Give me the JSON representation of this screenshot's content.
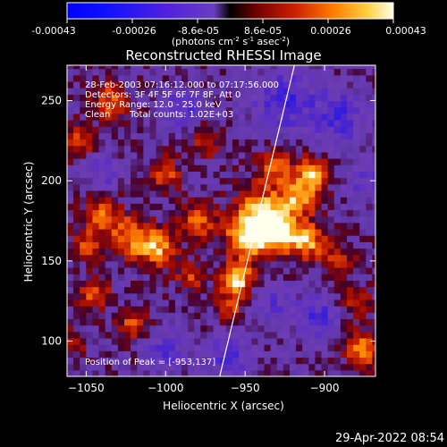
{
  "colorbar": {
    "tick_labels": [
      "-0.00043",
      "-0.00026",
      "-8.6e-05",
      "8.6e-05",
      "0.00026",
      "0.00043"
    ],
    "units_prefix": "(photons cm",
    "units_exp1": "-2",
    "units_mid": " s",
    "units_exp2": "-1",
    "units_mid2": " asec",
    "units_exp3": "-2",
    "units_suffix": ")",
    "range": [
      -0.00043,
      0.00043
    ]
  },
  "annotations": {
    "time": "28-Feb-2003 07:16:12.000 to 07:17:56.000",
    "detectors": "Detectors: 3F 4F 5F 6F 7F 8F, Att 0",
    "energy": "Energy Range: 12.0 - 25.0 keV",
    "clean_label": "Clean",
    "total_counts": "Total counts: 1.02E+03",
    "peak": "Position of Peak = [-953,137]"
  },
  "footer": {
    "date": "29-Apr-2022 08:54"
  },
  "chart_data": {
    "type": "heatmap",
    "title": "Reconstructed RHESSI Image",
    "xlabel": "Heliocentric X (arcsec)",
    "ylabel": "Heliocentric Y (arcsec)",
    "xlim": [
      -1062,
      -868
    ],
    "ylim": [
      78,
      272
    ],
    "x_ticks": [
      -1050,
      -1000,
      -950,
      -900
    ],
    "x_tick_labels": [
      "−1050",
      "−1000",
      "−950",
      "−900"
    ],
    "y_ticks": [
      100,
      150,
      200,
      250
    ],
    "y_tick_labels": [
      "100",
      "150",
      "200",
      "250"
    ],
    "peak_position": [
      -953,
      137
    ],
    "limb_line": [
      [
        -966,
        78
      ],
      [
        -919,
        272
      ]
    ],
    "grid": false,
    "sources": [
      {
        "x": -955,
        "y": 138,
        "intensity": 1.0,
        "radius": 7
      },
      {
        "x": -948,
        "y": 165,
        "intensity": 0.85,
        "radius": 10
      },
      {
        "x": -938,
        "y": 180,
        "intensity": 0.8,
        "radius": 12
      },
      {
        "x": -928,
        "y": 168,
        "intensity": 0.75,
        "radius": 9
      },
      {
        "x": -910,
        "y": 162,
        "intensity": 0.7,
        "radius": 8
      },
      {
        "x": -915,
        "y": 190,
        "intensity": 0.65,
        "radius": 8
      },
      {
        "x": -908,
        "y": 205,
        "intensity": 0.75,
        "radius": 7
      },
      {
        "x": -930,
        "y": 210,
        "intensity": 0.55,
        "radius": 8
      },
      {
        "x": -1005,
        "y": 158,
        "intensity": 0.75,
        "radius": 8
      },
      {
        "x": -1022,
        "y": 165,
        "intensity": 0.7,
        "radius": 9
      },
      {
        "x": -1040,
        "y": 180,
        "intensity": 0.6,
        "radius": 8
      },
      {
        "x": -1050,
        "y": 160,
        "intensity": 0.5,
        "radius": 7
      },
      {
        "x": -1055,
        "y": 225,
        "intensity": 0.55,
        "radius": 7
      },
      {
        "x": -1035,
        "y": 250,
        "intensity": 0.6,
        "radius": 8
      },
      {
        "x": -1020,
        "y": 110,
        "intensity": 0.55,
        "radius": 7
      },
      {
        "x": -1045,
        "y": 130,
        "intensity": 0.55,
        "radius": 7
      },
      {
        "x": -1000,
        "y": 205,
        "intensity": 0.55,
        "radius": 7
      },
      {
        "x": -980,
        "y": 175,
        "intensity": 0.6,
        "radius": 8
      },
      {
        "x": -975,
        "y": 225,
        "intensity": 0.45,
        "radius": 7
      },
      {
        "x": -875,
        "y": 95,
        "intensity": 0.7,
        "radius": 8
      },
      {
        "x": -880,
        "y": 125,
        "intensity": 0.45,
        "radius": 7
      },
      {
        "x": -890,
        "y": 150,
        "intensity": 0.45,
        "radius": 7
      },
      {
        "x": -985,
        "y": 140,
        "intensity": 0.5,
        "radius": 6
      },
      {
        "x": -960,
        "y": 120,
        "intensity": 0.45,
        "radius": 6
      },
      {
        "x": -1058,
        "y": 100,
        "intensity": 0.4,
        "radius": 6
      }
    ],
    "holes": [
      {
        "x": -925,
        "y": 250,
        "depth": 0.55,
        "radius": 14
      },
      {
        "x": -890,
        "y": 240,
        "depth": 0.5,
        "radius": 12
      },
      {
        "x": -905,
        "y": 115,
        "depth": 0.5,
        "radius": 10
      },
      {
        "x": -1000,
        "y": 95,
        "depth": 0.4,
        "radius": 10
      },
      {
        "x": -960,
        "y": 90,
        "depth": 0.45,
        "radius": 10
      },
      {
        "x": -990,
        "y": 245,
        "depth": 0.45,
        "radius": 9
      },
      {
        "x": -875,
        "y": 200,
        "depth": 0.4,
        "radius": 8
      },
      {
        "x": -935,
        "y": 125,
        "depth": 0.4,
        "radius": 8
      },
      {
        "x": -1040,
        "y": 205,
        "depth": 0.35,
        "radius": 8
      }
    ]
  }
}
